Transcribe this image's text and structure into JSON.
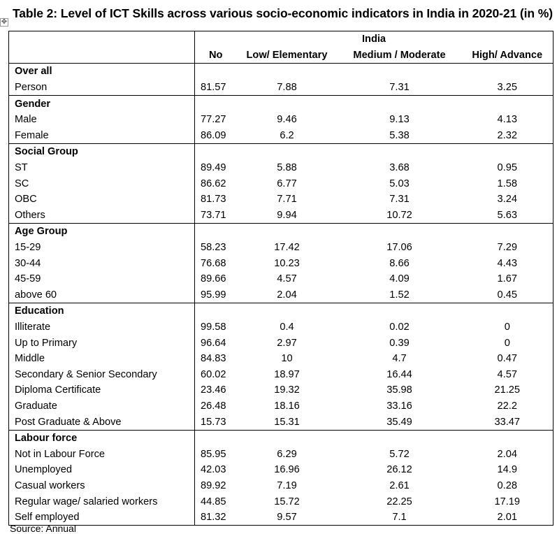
{
  "title": "Table 2: Level of ICT Skills across various socio-economic indicators in India in 2020-21 (in %)",
  "handle_glyph": "✥",
  "header": {
    "group": "India",
    "columns": [
      "No",
      "Low/ Elementary",
      "Medium / Moderate",
      "High/ Advance"
    ]
  },
  "sections": [
    {
      "name": "Over all",
      "rows": [
        {
          "label": "Person",
          "values": [
            "81.57",
            "7.88",
            "7.31",
            "3.25"
          ]
        }
      ]
    },
    {
      "name": "Gender",
      "rows": [
        {
          "label": "Male",
          "values": [
            "77.27",
            "9.46",
            "9.13",
            "4.13"
          ]
        },
        {
          "label": "Female",
          "values": [
            "86.09",
            "6.2",
            "5.38",
            "2.32"
          ]
        }
      ]
    },
    {
      "name": "Social Group",
      "rows": [
        {
          "label": "ST",
          "values": [
            "89.49",
            "5.88",
            "3.68",
            "0.95"
          ]
        },
        {
          "label": "SC",
          "values": [
            "86.62",
            "6.77",
            "5.03",
            "1.58"
          ]
        },
        {
          "label": "OBC",
          "values": [
            "81.73",
            "7.71",
            "7.31",
            "3.24"
          ]
        },
        {
          "label": "Others",
          "values": [
            "73.71",
            "9.94",
            "10.72",
            "5.63"
          ]
        }
      ]
    },
    {
      "name": "Age Group",
      "rows": [
        {
          "label": "15-29",
          "values": [
            "58.23",
            "17.42",
            "17.06",
            "7.29"
          ]
        },
        {
          "label": "30-44",
          "values": [
            "76.68",
            "10.23",
            "8.66",
            "4.43"
          ]
        },
        {
          "label": "45-59",
          "values": [
            "89.66",
            "4.57",
            "4.09",
            "1.67"
          ]
        },
        {
          "label": "above 60",
          "values": [
            "95.99",
            "2.04",
            "1.52",
            "0.45"
          ]
        }
      ]
    },
    {
      "name": "Education",
      "rows": [
        {
          "label": "Illiterate",
          "values": [
            "99.58",
            "0.4",
            "0.02",
            "0"
          ]
        },
        {
          "label": "Up to Primary",
          "values": [
            "96.64",
            "2.97",
            "0.39",
            "0"
          ]
        },
        {
          "label": "Middle",
          "values": [
            "84.83",
            "10",
            "4.7",
            "0.47"
          ]
        },
        {
          "label": "Secondary & Senior Secondary",
          "values": [
            "60.02",
            "18.97",
            "16.44",
            "4.57"
          ]
        },
        {
          "label": "Diploma Certificate",
          "values": [
            "23.46",
            "19.32",
            "35.98",
            "21.25"
          ]
        },
        {
          "label": "Graduate",
          "values": [
            "26.48",
            "18.16",
            "33.16",
            "22.2"
          ]
        },
        {
          "label": "Post Graduate & Above",
          "values": [
            "15.73",
            "15.31",
            "35.49",
            "33.47"
          ]
        }
      ]
    },
    {
      "name": "Labour force",
      "rows": [
        {
          "label": "Not in Labour Force",
          "values": [
            "85.95",
            "6.29",
            "5.72",
            "2.04"
          ]
        },
        {
          "label": "Unemployed",
          "values": [
            "42.03",
            "16.96",
            "26.12",
            "14.9"
          ]
        },
        {
          "label": "Casual workers",
          "values": [
            "89.92",
            "7.19",
            "2.61",
            "0.28"
          ]
        },
        {
          "label": "Regular wage/ salaried workers",
          "values": [
            "44.85",
            "15.72",
            "22.25",
            "17.19"
          ]
        },
        {
          "label": "Self employed",
          "values": [
            "81.32",
            "9.57",
            "7.1",
            "2.01"
          ]
        }
      ]
    }
  ],
  "footer": "Source: Annual"
}
